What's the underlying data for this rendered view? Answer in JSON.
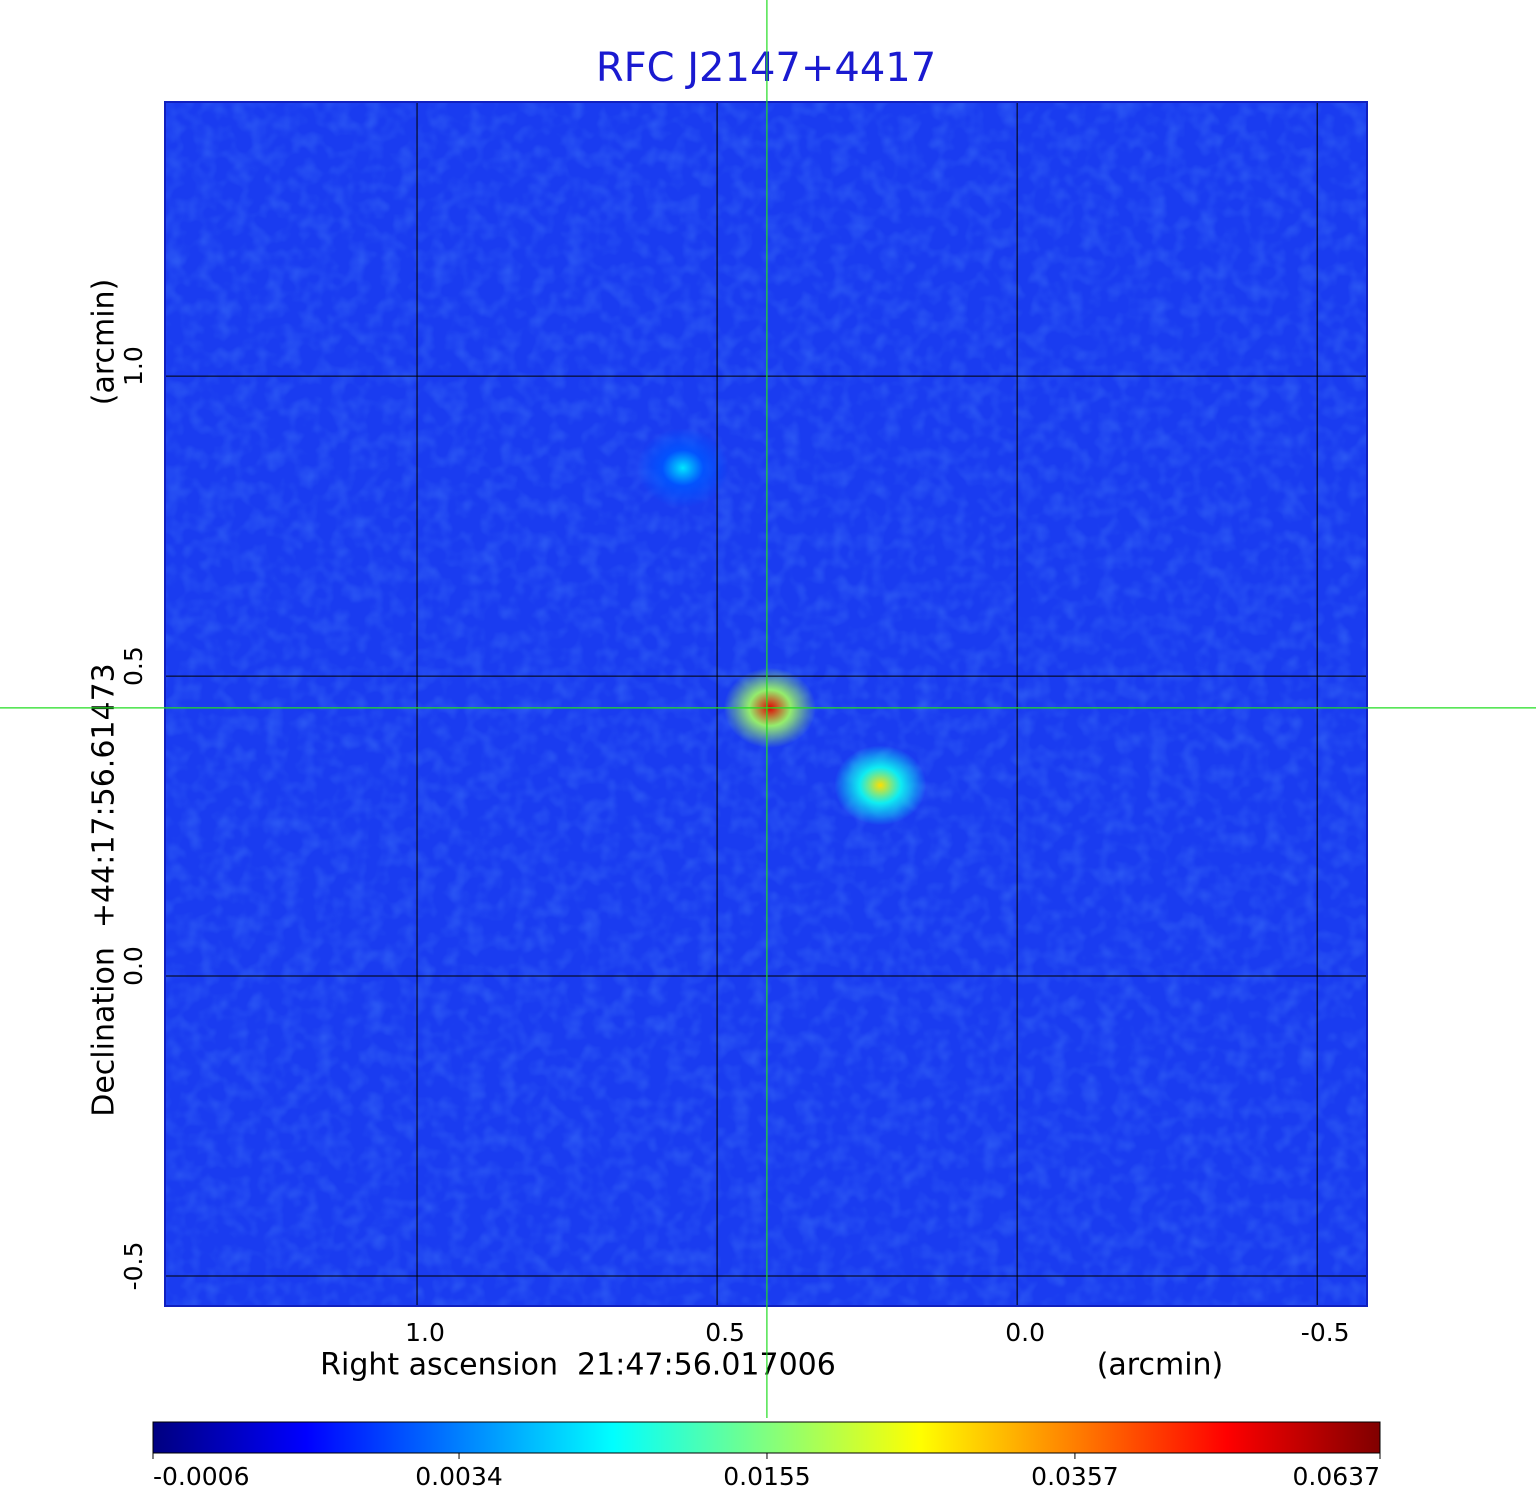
{
  "chart_data": {
    "type": "image",
    "title": "RFC J2147+4417",
    "x_label": "Right ascension  21:47:56.017006",
    "x_unit": "(arcmin)",
    "y_label": "Declination  +44:17:56.61473",
    "y_unit": "(arcmin)",
    "xlim": [
      1.42,
      -0.583
    ],
    "ylim": [
      -0.55,
      1.457
    ],
    "xticks": [
      {
        "value": 1,
        "label": "1.0"
      },
      0.5,
      {
        "value": 0,
        "label": "0.0"
      },
      -0.5
    ],
    "yticks": [
      {
        "value": 1,
        "label": "1.0"
      },
      0.5,
      {
        "value": 0,
        "label": "0.0"
      },
      -0.5
    ],
    "grid": true,
    "crosshair": {
      "x": 0.417,
      "y": 0.447,
      "color": "#22dd22"
    },
    "sources": {
      "x": [
        0.557,
        0.412,
        0.228
      ],
      "y": [
        0.847,
        0.447,
        0.318
      ],
      "values": [
        0.0073,
        0.0515,
        0.027
      ]
    },
    "colormap": "jet",
    "colorbar_scale": "sqrt",
    "clim": [
      -0.0006,
      0.0637
    ],
    "colorbar_ticks": [
      -0.0006,
      0.0034,
      0.0155,
      0.0357,
      0.0637
    ]
  }
}
